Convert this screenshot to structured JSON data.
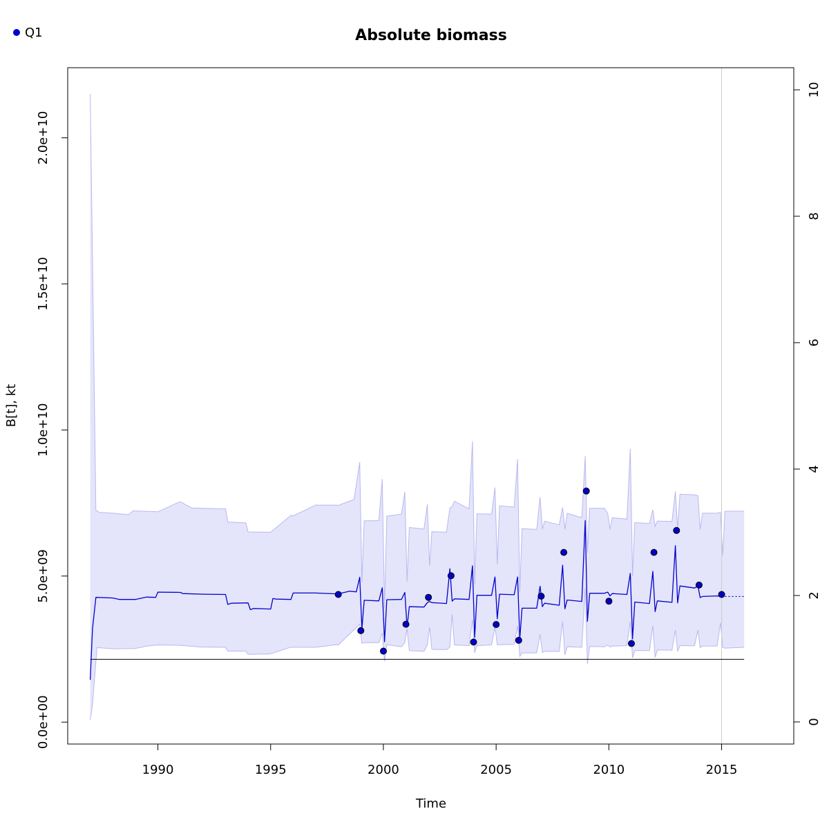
{
  "chart_data": {
    "type": "line",
    "title": "Absolute biomass",
    "xlabel": "Time",
    "ylabel": "B[t], kt",
    "xlim": [
      1986,
      2018.2
    ],
    "ylim": [
      -750000000,
      22400000000
    ],
    "x_ticks": [
      1990,
      1995,
      2000,
      2005,
      2010,
      2015
    ],
    "x_tick_labels": [
      "1990",
      "1995",
      "2000",
      "2005",
      "2010",
      "2015"
    ],
    "y_ticks": [
      0,
      5000000000,
      10000000000,
      15000000000,
      20000000000
    ],
    "y_tick_labels": [
      "0.0e+00",
      "5.0e+09",
      "1.0e+10",
      "1.5e+10",
      "2.0e+10"
    ],
    "y2_ticks": [
      0,
      2,
      4,
      6,
      8,
      10
    ],
    "y2_tick_labels": [
      "0",
      "2",
      "4",
      "6",
      "8",
      "10"
    ],
    "y2_lim": [
      -0.35,
      10.35
    ],
    "legend": {
      "position": "top-left",
      "entries": [
        {
          "label": "Q1",
          "color": "#0000cc"
        }
      ]
    },
    "colors": {
      "line": "#0000cc",
      "band": "#e4e4fb",
      "band_edge": "#b8b8f0",
      "ref": "#000000",
      "vline": "#cccccc"
    },
    "reference_line": {
      "y": 2150000000,
      "x_range": [
        1987,
        2016
      ]
    },
    "vertical_line": {
      "x": 2015
    },
    "series": [
      {
        "name": "B[t]",
        "x": [
          1987.0,
          1987.1,
          1987.25,
          1988.0,
          1988.3,
          1989.0,
          1989.5,
          1989.9,
          1990.0,
          1991.0,
          1991.1,
          1992.0,
          1993.0,
          1993.1,
          1993.25,
          1994.0,
          1994.1,
          1994.25,
          1995.0,
          1995.1,
          1995.25,
          1995.9,
          1996.0,
          1997.0,
          1997.9,
          1998.0,
          1998.5,
          1998.8,
          1998.95,
          1999.05,
          1999.15,
          1999.8,
          1999.95,
          2000.05,
          2000.15,
          2000.8,
          2000.95,
          2001.05,
          2001.15,
          2001.8,
          2001.95,
          2002.05,
          2002.15,
          2002.8,
          2002.95,
          2003.05,
          2003.15,
          2003.8,
          2003.95,
          2004.05,
          2004.15,
          2004.8,
          2004.95,
          2005.05,
          2005.15,
          2005.8,
          2005.95,
          2006.05,
          2006.15,
          2006.8,
          2006.95,
          2007.05,
          2007.15,
          2007.8,
          2007.95,
          2008.05,
          2008.15,
          2008.8,
          2008.95,
          2009.05,
          2009.15,
          2009.8,
          2009.95,
          2010.05,
          2010.15,
          2010.8,
          2010.95,
          2011.05,
          2011.15,
          2011.8,
          2011.95,
          2012.05,
          2012.15,
          2012.8,
          2012.95,
          2013.05,
          2013.15,
          2013.8,
          2013.95,
          2014.05,
          2014.15,
          2014.8,
          2015.0
        ],
        "y": [
          1450000000,
          3200000000,
          4270000000,
          4250000000,
          4200000000,
          4200000000,
          4280000000,
          4270000000,
          4450000000,
          4440000000,
          4400000000,
          4380000000,
          4370000000,
          4030000000,
          4070000000,
          4080000000,
          3850000000,
          3890000000,
          3870000000,
          4230000000,
          4210000000,
          4200000000,
          4420000000,
          4420000000,
          4390000000,
          4390000000,
          4480000000,
          4460000000,
          4960000000,
          3200000000,
          4170000000,
          4150000000,
          4600000000,
          2750000000,
          4190000000,
          4200000000,
          4440000000,
          3250000000,
          3950000000,
          3940000000,
          4090000000,
          4130000000,
          4090000000,
          4060000000,
          5250000000,
          4140000000,
          4220000000,
          4200000000,
          5350000000,
          2900000000,
          4340000000,
          4340000000,
          4970000000,
          3540000000,
          4380000000,
          4360000000,
          4970000000,
          2850000000,
          3900000000,
          3900000000,
          4650000000,
          3950000000,
          4070000000,
          4000000000,
          5370000000,
          3880000000,
          4180000000,
          4130000000,
          6900000000,
          3450000000,
          4410000000,
          4410000000,
          4450000000,
          4320000000,
          4400000000,
          4370000000,
          5090000000,
          2850000000,
          4110000000,
          4060000000,
          5160000000,
          3780000000,
          4150000000,
          4100000000,
          6040000000,
          4080000000,
          4660000000,
          4590000000,
          4660000000,
          4260000000,
          4300000000,
          4320000000,
          4300000000
        ]
      },
      {
        "name": "upper",
        "x": [
          1987.0,
          1987.25,
          1987.4,
          1988.0,
          1988.7,
          1988.9,
          1990.0,
          1990.9,
          1991.0,
          1991.5,
          1992.8,
          1993.0,
          1993.1,
          1993.9,
          1994.0,
          1995.0,
          1995.9,
          1996.0,
          1997.0,
          1997.9,
          1998.0,
          1998.7,
          1998.95,
          1999.05,
          1999.15,
          1999.8,
          1999.95,
          2000.05,
          2000.15,
          2000.8,
          2000.95,
          2001.05,
          2001.15,
          2001.8,
          2001.95,
          2002.05,
          2002.15,
          2002.8,
          2002.95,
          2003.05,
          2003.15,
          2003.8,
          2003.95,
          2004.05,
          2004.15,
          2004.8,
          2004.95,
          2005.05,
          2005.15,
          2005.8,
          2005.95,
          2006.05,
          2006.15,
          2006.8,
          2006.95,
          2007.05,
          2007.15,
          2007.8,
          2007.95,
          2008.05,
          2008.15,
          2008.8,
          2008.95,
          2009.05,
          2009.15,
          2009.8,
          2009.95,
          2010.05,
          2010.15,
          2010.8,
          2010.95,
          2011.05,
          2011.15,
          2011.8,
          2011.95,
          2012.05,
          2012.15,
          2012.8,
          2012.95,
          2013.05,
          2013.15,
          2013.8,
          2013.95,
          2014.05,
          2014.15,
          2014.8,
          2014.95,
          2015.05,
          2015.15,
          2016.0
        ],
        "y": [
          21500000000,
          7250000000,
          7180000000,
          7150000000,
          7100000000,
          7230000000,
          7200000000,
          7520000000,
          7540000000,
          7330000000,
          7300000000,
          7300000000,
          6850000000,
          6820000000,
          6510000000,
          6500000000,
          7080000000,
          7060000000,
          7430000000,
          7430000000,
          7420000000,
          7620000000,
          8900000000,
          4800000000,
          6890000000,
          6900000000,
          8320000000,
          3900000000,
          7050000000,
          7120000000,
          7880000000,
          4800000000,
          6660000000,
          6610000000,
          7450000000,
          5350000000,
          6520000000,
          6500000000,
          7330000000,
          7380000000,
          7560000000,
          7300000000,
          9610000000,
          4710000000,
          7130000000,
          7120000000,
          8030000000,
          5400000000,
          7400000000,
          7360000000,
          9000000000,
          4450000000,
          6620000000,
          6600000000,
          7700000000,
          6600000000,
          6880000000,
          6750000000,
          7350000000,
          6600000000,
          7150000000,
          7000000000,
          9100000000,
          5800000000,
          7320000000,
          7320000000,
          7150000000,
          6600000000,
          7000000000,
          6950000000,
          9350000000,
          5000000000,
          6830000000,
          6800000000,
          7270000000,
          6700000000,
          6880000000,
          6870000000,
          7900000000,
          6600000000,
          7800000000,
          7780000000,
          7750000000,
          6600000000,
          7150000000,
          7150000000,
          7180000000,
          5700000000,
          7220000000,
          7220000000
        ]
      },
      {
        "name": "lower",
        "x": [
          1987.0,
          1987.1,
          1987.3,
          1988.0,
          1989.0,
          1989.5,
          1990.0,
          1991.0,
          1991.9,
          1993.0,
          1993.1,
          1993.9,
          1994.0,
          1994.9,
          1995.0,
          1995.9,
          1996.0,
          1997.0,
          1997.9,
          1998.0,
          1998.95,
          1999.05,
          1999.15,
          1999.8,
          1999.95,
          2000.05,
          2000.15,
          2000.8,
          2000.95,
          2001.05,
          2001.15,
          2001.8,
          2001.95,
          2002.05,
          2002.15,
          2002.8,
          2002.95,
          2003.05,
          2003.15,
          2003.8,
          2003.95,
          2004.05,
          2004.15,
          2004.8,
          2004.95,
          2005.05,
          2005.15,
          2005.8,
          2005.95,
          2006.05,
          2006.15,
          2006.8,
          2006.95,
          2007.05,
          2007.15,
          2007.8,
          2007.95,
          2008.05,
          2008.15,
          2008.8,
          2008.95,
          2009.05,
          2009.15,
          2009.8,
          2009.95,
          2010.05,
          2010.15,
          2010.8,
          2010.95,
          2011.05,
          2011.15,
          2011.8,
          2011.95,
          2012.05,
          2012.15,
          2012.8,
          2012.95,
          2013.05,
          2013.15,
          2013.8,
          2013.95,
          2014.05,
          2014.15,
          2014.8,
          2014.95,
          2015.05,
          2015.15,
          2016.0
        ],
        "y": [
          80000000,
          600000000,
          2550000000,
          2510000000,
          2520000000,
          2600000000,
          2640000000,
          2630000000,
          2570000000,
          2560000000,
          2430000000,
          2430000000,
          2320000000,
          2330000000,
          2340000000,
          2570000000,
          2560000000,
          2560000000,
          2650000000,
          2640000000,
          3350000000,
          2690000000,
          2720000000,
          2720000000,
          3060000000,
          2080000000,
          2650000000,
          2580000000,
          2720000000,
          3200000000,
          2450000000,
          2420000000,
          2650000000,
          3250000000,
          2490000000,
          2480000000,
          2560000000,
          3690000000,
          2640000000,
          2620000000,
          3500000000,
          2370000000,
          2620000000,
          2640000000,
          3260000000,
          2650000000,
          2650000000,
          2660000000,
          3300000000,
          2250000000,
          2370000000,
          2370000000,
          3000000000,
          2380000000,
          2420000000,
          2420000000,
          3450000000,
          2300000000,
          2580000000,
          2560000000,
          4600000000,
          2000000000,
          2590000000,
          2580000000,
          2640000000,
          2570000000,
          2600000000,
          2620000000,
          3440000000,
          2200000000,
          2450000000,
          2450000000,
          3300000000,
          2220000000,
          2470000000,
          2460000000,
          3150000000,
          2420000000,
          2620000000,
          2610000000,
          3150000000,
          2550000000,
          2600000000,
          2600000000,
          3400000000,
          2550000000,
          2530000000,
          2560000000
        ]
      },
      {
        "name": "projection",
        "x": [
          2015.0,
          2016.0
        ],
        "y": [
          4300000000,
          4300000000
        ]
      },
      {
        "name": "Q1",
        "x": [
          1998,
          1999,
          2000,
          2001,
          2002,
          2003,
          2004,
          2005,
          2006,
          2007,
          2008,
          2009,
          2010,
          2011,
          2012,
          2013,
          2014,
          2015
        ],
        "y": [
          4370000000,
          3130000000,
          2430000000,
          3350000000,
          4270000000,
          5010000000,
          2740000000,
          3340000000,
          2800000000,
          4310000000,
          5810000000,
          7910000000,
          4140000000,
          2690000000,
          5810000000,
          6560000000,
          4690000000,
          4370000000
        ]
      }
    ]
  }
}
